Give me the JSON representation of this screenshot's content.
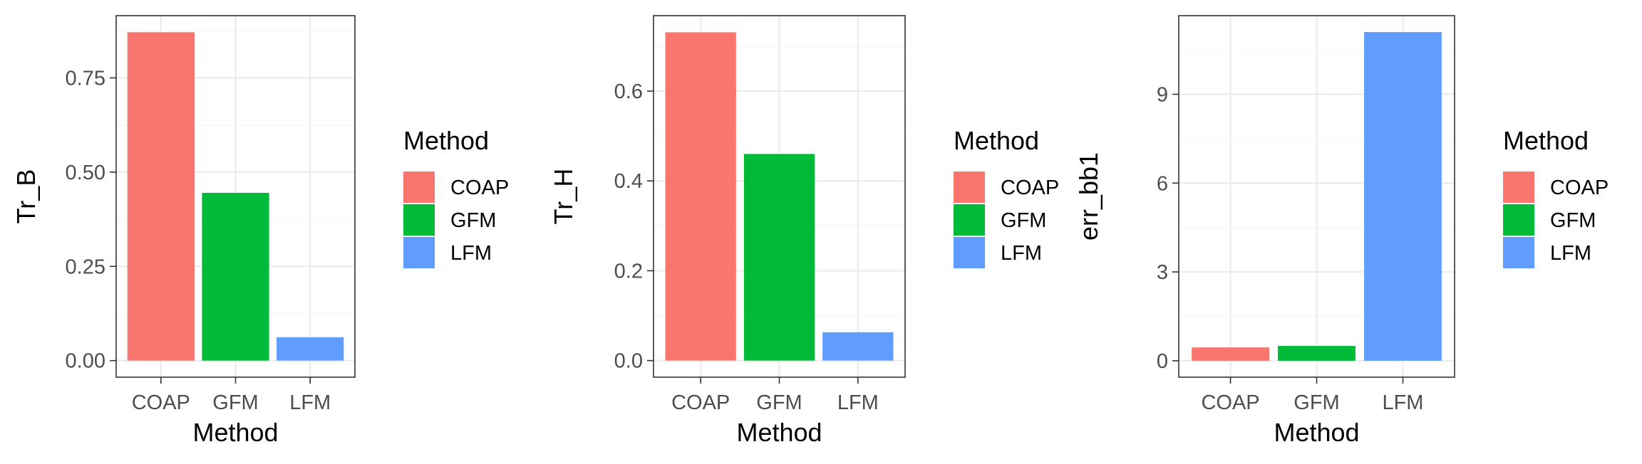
{
  "legend": {
    "title": "Method",
    "entries": [
      {
        "label": "COAP",
        "color": "#F8766D"
      },
      {
        "label": "GFM",
        "color": "#00BA38"
      },
      {
        "label": "LFM",
        "color": "#619CFF"
      }
    ]
  },
  "chart_data": [
    {
      "type": "bar",
      "categories": [
        "COAP",
        "GFM",
        "LFM"
      ],
      "values": [
        0.871,
        0.445,
        0.062
      ],
      "xlabel": "Method",
      "ylabel": "Tr_B",
      "ylim": [
        -0.044,
        0.915
      ],
      "yticks": [
        0,
        0.25,
        0.5,
        0.75
      ],
      "ytick_labels": [
        "0.00",
        "0.25",
        "0.50",
        "0.75"
      ],
      "grid": true
    },
    {
      "type": "bar",
      "categories": [
        "COAP",
        "GFM",
        "LFM"
      ],
      "values": [
        0.731,
        0.46,
        0.063
      ],
      "xlabel": "Method",
      "ylabel": "Tr_H",
      "ylim": [
        -0.037,
        0.768
      ],
      "yticks": [
        0,
        0.2,
        0.4,
        0.6
      ],
      "ytick_labels": [
        "0.0",
        "0.2",
        "0.4",
        "0.6"
      ],
      "grid": true
    },
    {
      "type": "bar",
      "categories": [
        "COAP",
        "GFM",
        "LFM"
      ],
      "values": [
        0.45,
        0.5,
        11.1
      ],
      "xlabel": "Method",
      "ylabel": "err_bb1",
      "ylim": [
        -0.555,
        11.655
      ],
      "yticks": [
        0,
        3,
        6,
        9
      ],
      "ytick_labels": [
        "0",
        "3",
        "6",
        "9"
      ],
      "grid": true
    }
  ]
}
